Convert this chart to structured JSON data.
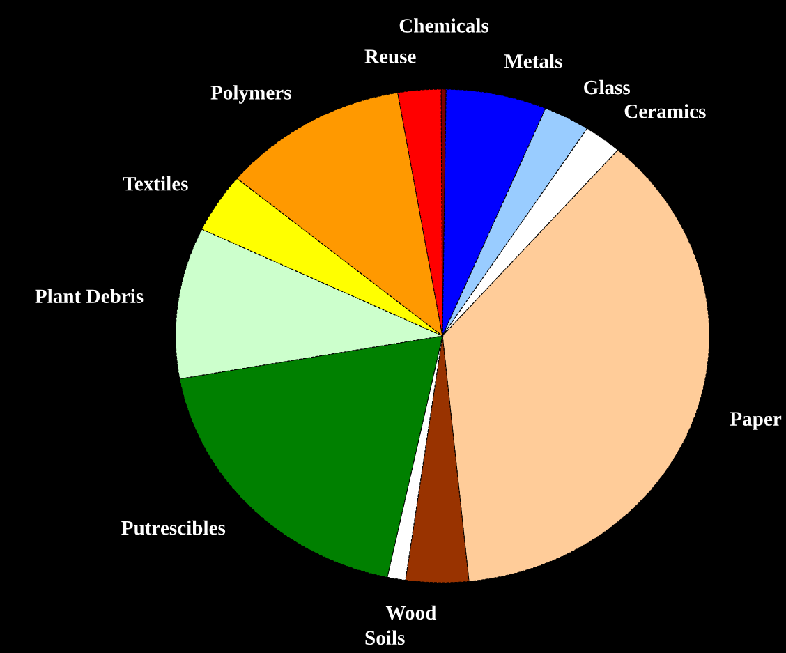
{
  "chart_data": {
    "type": "pie",
    "categories": [
      "Chemicals",
      "Metals",
      "Glass",
      "Ceramics",
      "Paper",
      "Wood",
      "Soils",
      "Putrescibles",
      "Plant Debris",
      "Textiles",
      "Polymers",
      "Reuse"
    ],
    "values": [
      0.3,
      6.1,
      2.8,
      2.3,
      37.0,
      3.8,
      1.1,
      18.9,
      9.9,
      3.9,
      11.3,
      2.6
    ],
    "colors": [
      "#800000",
      "#0000ff",
      "#99ccff",
      "#ffffff",
      "#ffcc99",
      "#993300",
      "#ffffff",
      "#008000",
      "#ccffcc",
      "#ffff00",
      "#ff9900",
      "#ff0000"
    ]
  }
}
